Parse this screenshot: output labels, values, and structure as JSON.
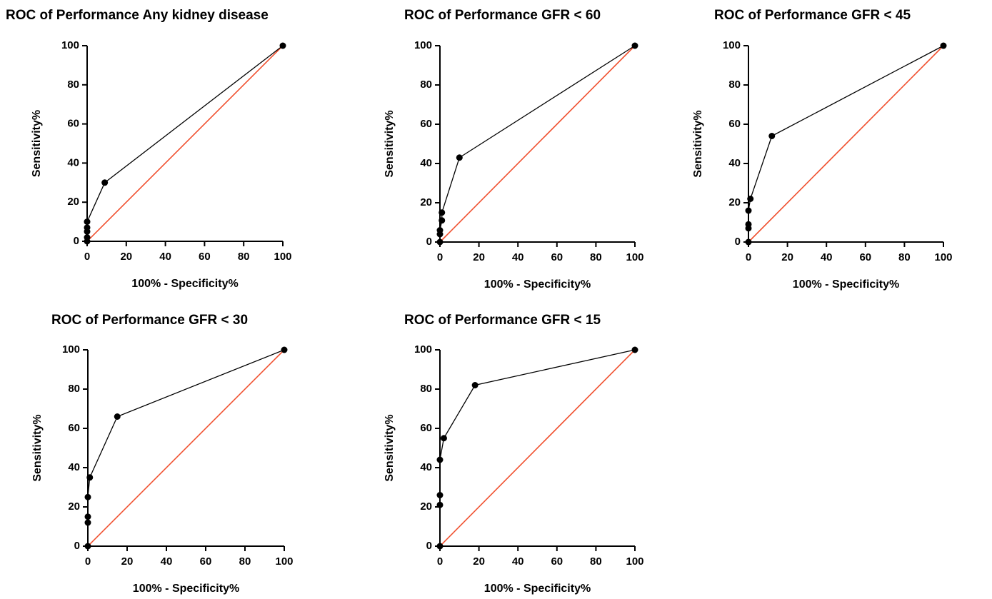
{
  "chart_data": [
    {
      "type": "line",
      "title": "ROC of Performance Any kidney disease",
      "xlabel": "100% - Specificity%",
      "ylabel": "Sensitivity%",
      "x": [
        0,
        0,
        0,
        0,
        0,
        9,
        100
      ],
      "y": [
        0,
        2,
        5,
        7,
        10,
        30,
        100
      ],
      "color": "#000000",
      "diagonal": {
        "x": [
          0,
          100
        ],
        "y": [
          0,
          100
        ],
        "color": "#f0502f"
      },
      "xlim": [
        0,
        100
      ],
      "ylim": [
        0,
        100
      ],
      "xticks": [
        0,
        20,
        40,
        60,
        80,
        100
      ],
      "yticks": [
        0,
        20,
        40,
        60,
        80,
        100
      ]
    },
    {
      "type": "line",
      "title": "ROC of Performance GFR < 60",
      "xlabel": "100% - Specificity%",
      "ylabel": "Sensitivity%",
      "x": [
        0,
        0,
        0,
        1,
        1,
        10,
        100
      ],
      "y": [
        0,
        4,
        6,
        11,
        15,
        43,
        100
      ],
      "color": "#000000",
      "diagonal": {
        "x": [
          0,
          100
        ],
        "y": [
          0,
          100
        ],
        "color": "#f0502f"
      },
      "xlim": [
        0,
        100
      ],
      "ylim": [
        0,
        100
      ],
      "xticks": [
        0,
        20,
        40,
        60,
        80,
        100
      ],
      "yticks": [
        0,
        20,
        40,
        60,
        80,
        100
      ]
    },
    {
      "type": "line",
      "title": "ROC of Performance GFR < 45",
      "xlabel": "100% - Specificity%",
      "ylabel": "Sensitivity%",
      "x": [
        0,
        0,
        0,
        0,
        1,
        12,
        100
      ],
      "y": [
        0,
        7,
        9,
        16,
        22,
        54,
        100
      ],
      "color": "#000000",
      "diagonal": {
        "x": [
          0,
          100
        ],
        "y": [
          0,
          100
        ],
        "color": "#f0502f"
      },
      "xlim": [
        0,
        100
      ],
      "ylim": [
        0,
        100
      ],
      "xticks": [
        0,
        20,
        40,
        60,
        80,
        100
      ],
      "yticks": [
        0,
        20,
        40,
        60,
        80,
        100
      ]
    },
    {
      "type": "line",
      "title": "ROC of Performance GFR < 30",
      "xlabel": "100% - Specificity%",
      "ylabel": "Sensitivity%",
      "x": [
        0,
        0,
        0,
        0,
        1,
        15,
        100
      ],
      "y": [
        0,
        12,
        15,
        25,
        35,
        66,
        100
      ],
      "color": "#000000",
      "diagonal": {
        "x": [
          0,
          100
        ],
        "y": [
          0,
          100
        ],
        "color": "#f0502f"
      },
      "xlim": [
        0,
        100
      ],
      "ylim": [
        0,
        100
      ],
      "xticks": [
        0,
        20,
        40,
        60,
        80,
        100
      ],
      "yticks": [
        0,
        20,
        40,
        60,
        80,
        100
      ]
    },
    {
      "type": "line",
      "title": "ROC of Performance GFR < 15",
      "xlabel": "100% - Specificity%",
      "ylabel": "Sensitivity%",
      "x": [
        0,
        0,
        0,
        0,
        2,
        18,
        100
      ],
      "y": [
        0,
        21,
        26,
        44,
        55,
        82,
        100
      ],
      "color": "#000000",
      "diagonal": {
        "x": [
          0,
          100
        ],
        "y": [
          0,
          100
        ],
        "color": "#f0502f"
      },
      "xlim": [
        0,
        100
      ],
      "ylim": [
        0,
        100
      ],
      "xticks": [
        0,
        20,
        40,
        60,
        80,
        100
      ],
      "yticks": [
        0,
        20,
        40,
        60,
        80,
        100
      ]
    }
  ]
}
